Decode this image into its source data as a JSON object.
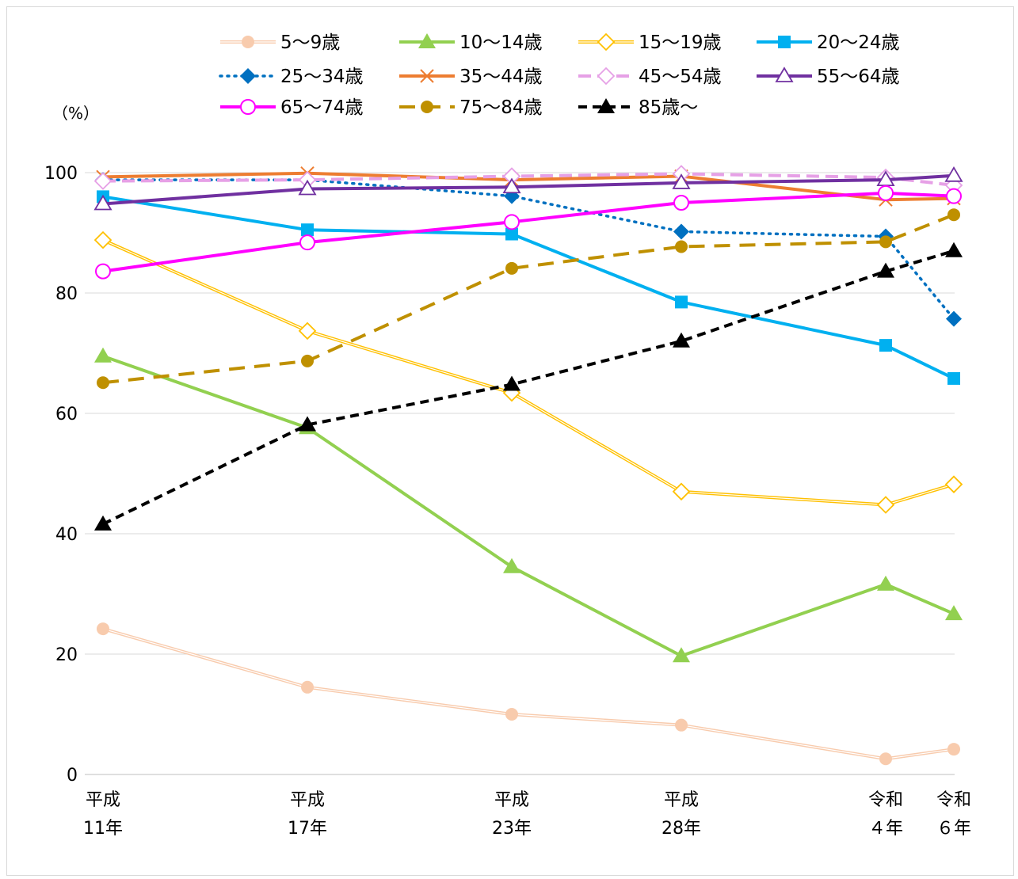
{
  "chart_data": {
    "type": "line",
    "unit_label": "（%）",
    "ylim": [
      0,
      100
    ],
    "yticks": [
      0,
      20,
      40,
      60,
      80,
      100
    ],
    "grid": true,
    "legend_position": "top",
    "categories": [
      [
        "平成",
        "11年"
      ],
      [
        "平成",
        "17年"
      ],
      [
        "平成",
        "23年"
      ],
      [
        "平成",
        "28年"
      ],
      [
        "令和",
        "４年"
      ],
      [
        "令和",
        "６年"
      ]
    ],
    "series": [
      {
        "name": "5～9歳",
        "color": "#f8cbad",
        "values": [
          24.2,
          14.5,
          10.0,
          8.2,
          2.6,
          4.2
        ]
      },
      {
        "name": "10～14歳",
        "color": "#92d050",
        "values": [
          69.5,
          57.6,
          34.5,
          19.7,
          31.6,
          26.7
        ]
      },
      {
        "name": "15～19歳",
        "color": "#ffc000",
        "values": [
          88.8,
          73.7,
          63.4,
          47.0,
          44.8,
          48.2
        ]
      },
      {
        "name": "20～24歳",
        "color": "#00b0f0",
        "values": [
          96.0,
          90.5,
          89.8,
          78.5,
          71.3,
          65.8
        ]
      },
      {
        "name": "25～34歳",
        "color": "#0070c0",
        "values": [
          98.8,
          98.8,
          96.1,
          90.2,
          89.4,
          75.7
        ]
      },
      {
        "name": "35～44歳",
        "color": "#ed7d31",
        "values": [
          99.3,
          99.9,
          98.8,
          99.4,
          95.5,
          95.7
        ]
      },
      {
        "name": "45～54歳",
        "color": "#e6a0e6",
        "values": [
          98.6,
          98.8,
          99.4,
          99.8,
          99.2,
          97.9
        ]
      },
      {
        "name": "55～64歳",
        "color": "#7030a0",
        "values": [
          94.8,
          97.3,
          97.6,
          98.3,
          98.8,
          99.5
        ]
      },
      {
        "name": "65～74歳",
        "color": "#ff00ff",
        "values": [
          83.6,
          88.4,
          91.8,
          95.0,
          96.6,
          96.1
        ]
      },
      {
        "name": "75～84歳",
        "color": "#bf9000",
        "values": [
          65.1,
          68.7,
          84.1,
          87.7,
          88.5,
          93.0
        ]
      },
      {
        "name": "85歳～",
        "color": "#000000",
        "values": [
          41.6,
          58.1,
          64.8,
          72.0,
          83.6,
          87.0
        ]
      }
    ]
  }
}
